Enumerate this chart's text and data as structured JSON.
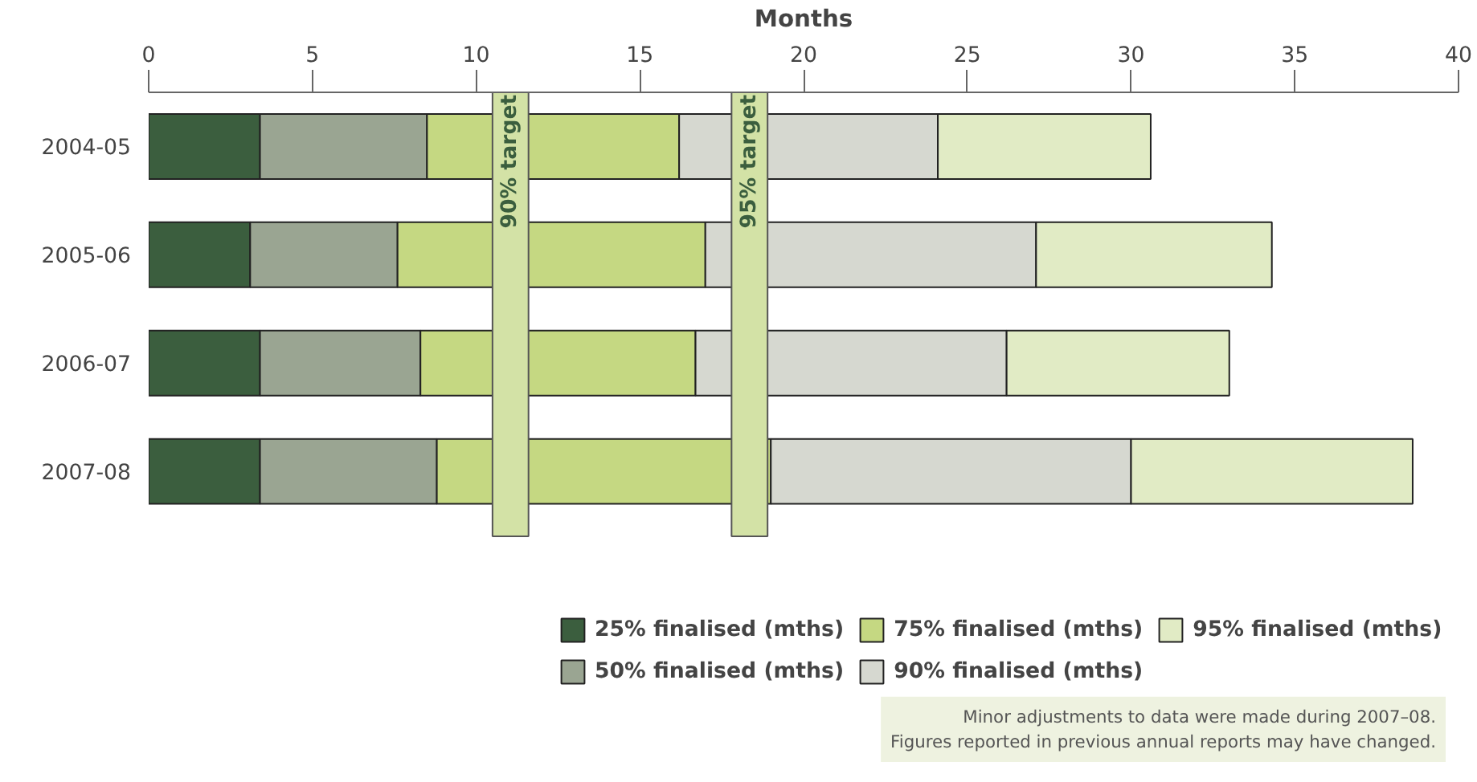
{
  "chart_data": {
    "type": "bar",
    "orientation": "horizontal",
    "stacked": true,
    "xlabel": "Months",
    "categories": [
      "2004-05",
      "2005-06",
      "2006-07",
      "2007-08"
    ],
    "series": [
      {
        "name": "25% finalised (mths)",
        "color": "#3b5e3e",
        "values": [
          3.4,
          3.1,
          3.4,
          3.4
        ]
      },
      {
        "name": "50% finalised (mths)",
        "color": "#9aa592",
        "values": [
          5.1,
          4.5,
          4.9,
          5.4
        ]
      },
      {
        "name": "75% finalised (mths)",
        "color": "#c5d882",
        "values": [
          7.7,
          9.4,
          8.4,
          10.2
        ]
      },
      {
        "name": "90% finalised (mths)",
        "color": "#d6d8d0",
        "values": [
          7.9,
          10.1,
          9.5,
          11.0
        ]
      },
      {
        "name": "95% finalised (mths)",
        "color": "#e1ebc5",
        "values": [
          6.5,
          7.2,
          6.8,
          8.6
        ]
      }
    ],
    "xlim": [
      0,
      40
    ],
    "xticks": [
      0,
      5,
      10,
      15,
      20,
      25,
      30,
      35,
      40
    ],
    "bands": [
      {
        "axis": "x",
        "from": 10.5,
        "to": 11.6,
        "label": "90% target",
        "color": "#d3e2a6"
      },
      {
        "axis": "x",
        "from": 17.8,
        "to": 18.9,
        "label": "95% target",
        "color": "#d3e2a6"
      }
    ],
    "grid": false,
    "legend": "bottom right",
    "annotations": [
      "Minor adjustments to data were made during 2007–08.\nFigures reported in previous annual reports may have changed."
    ]
  }
}
